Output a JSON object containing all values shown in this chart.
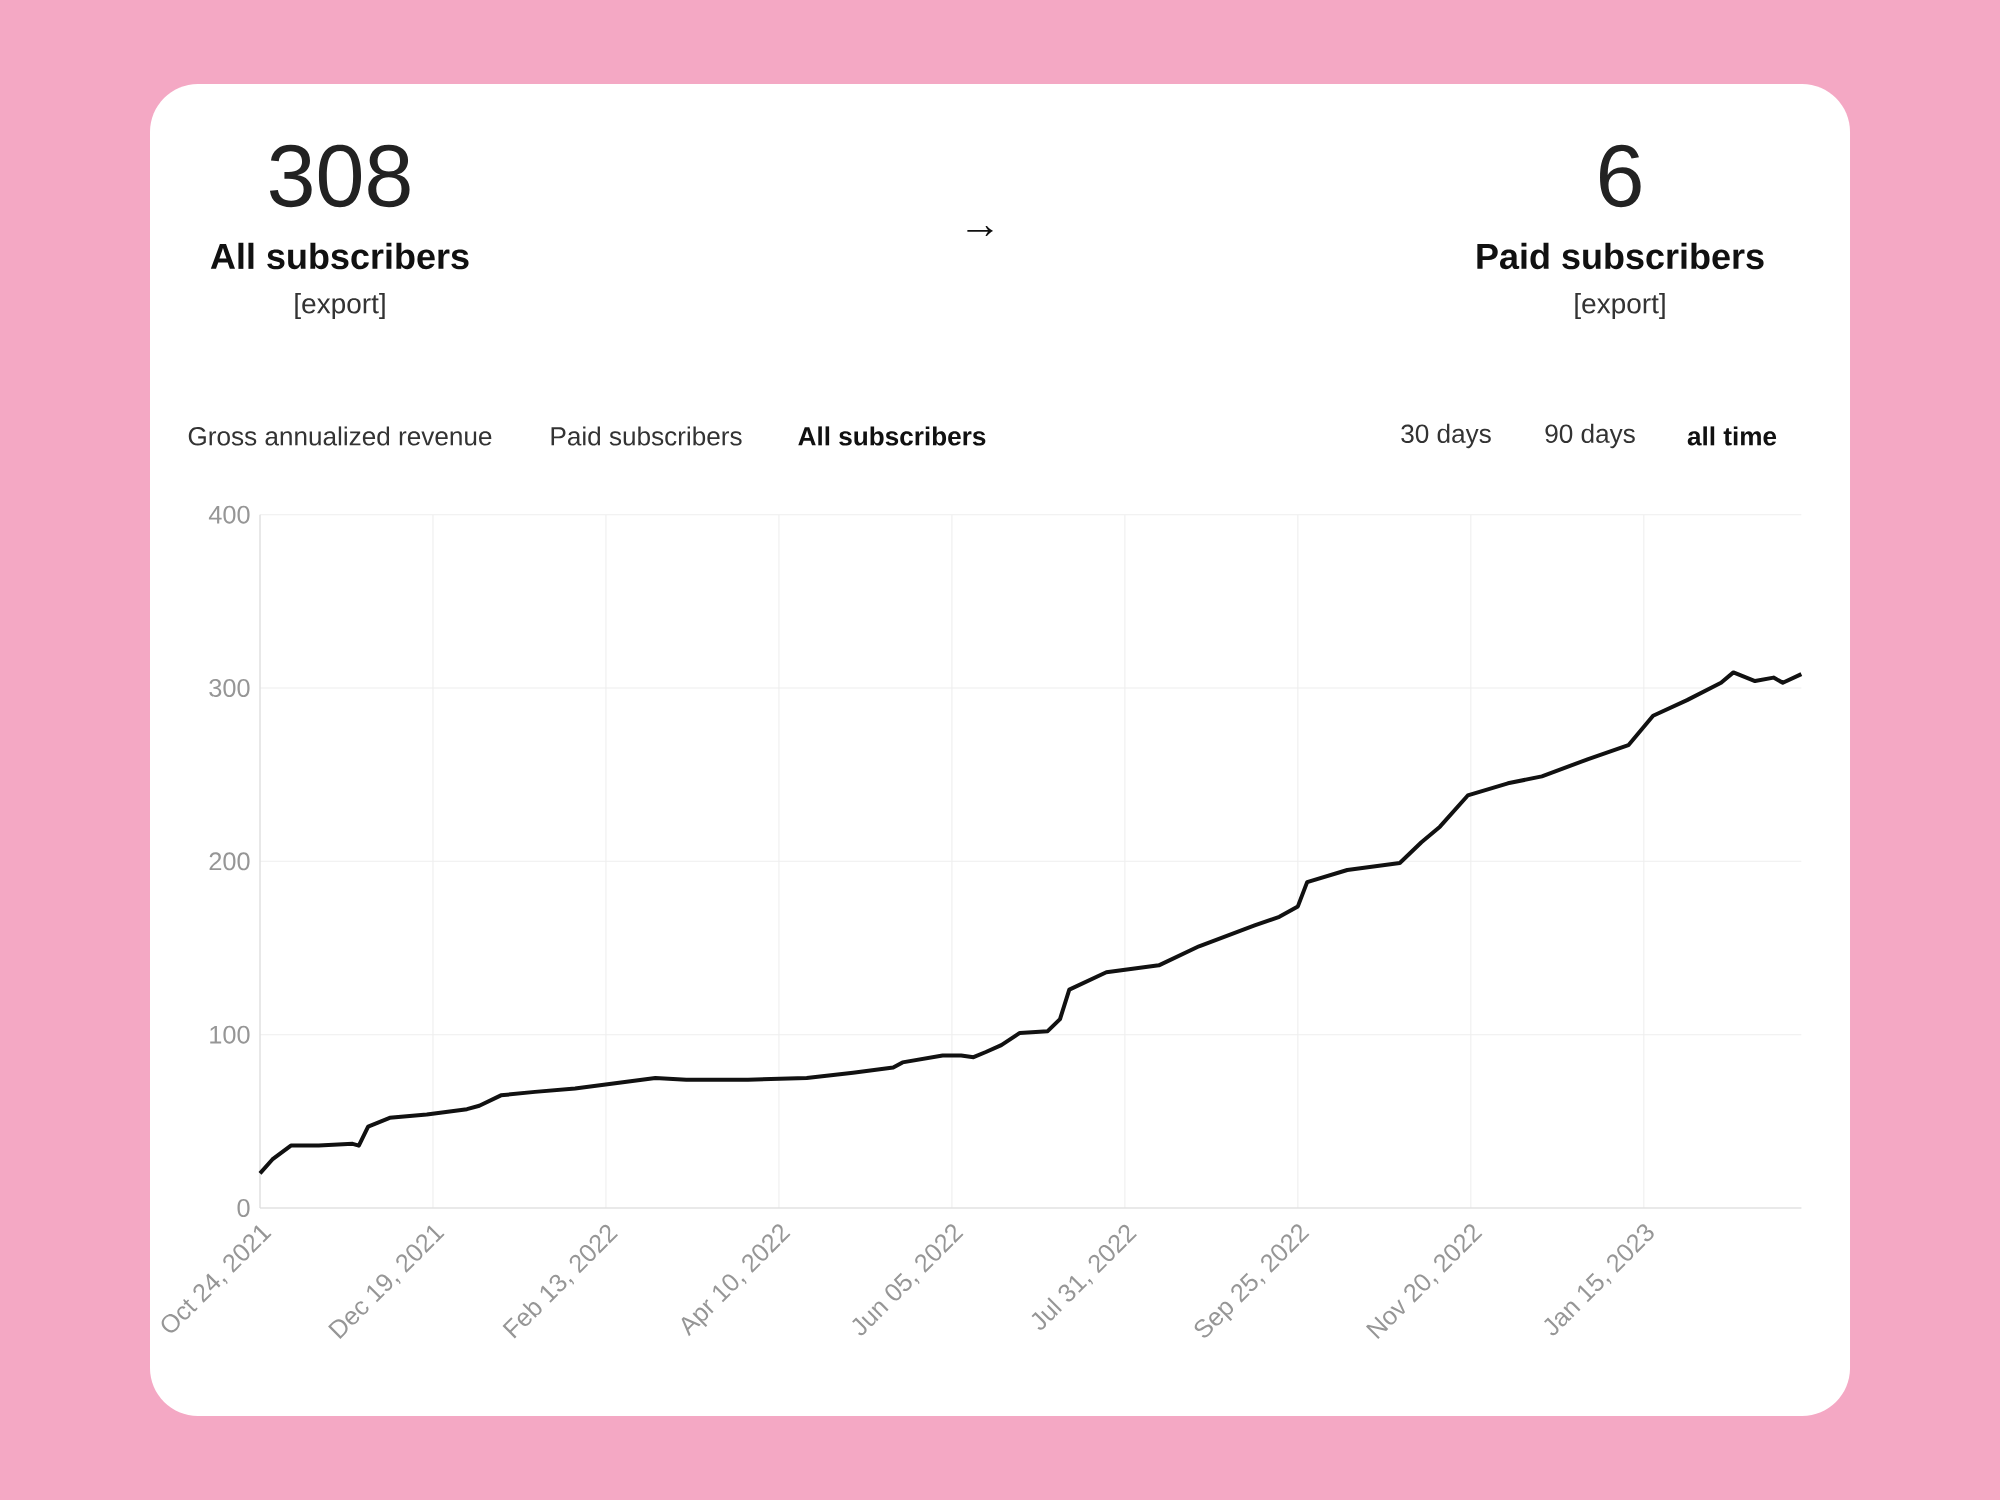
{
  "chart_data": {
    "type": "line",
    "color": "#111111",
    "grid": true,
    "annotations": [
      "308",
      "All subscribers",
      "[export]",
      "→",
      "6",
      "Paid subscribers",
      "[export]",
      "Gross annualized revenue",
      "Paid subscribers",
      "All subscribers",
      "30 days",
      "90 days",
      "all time"
    ],
    "xlim": [
      "2021-10-24",
      "2023-03-07"
    ],
    "xticks": [
      {
        "value": "2021-10-24",
        "label": "Oct 24, 2021"
      },
      {
        "value": "2021-12-19",
        "label": "Dec 19, 2021"
      },
      {
        "value": "2022-02-13",
        "label": "Feb 13, 2022"
      },
      {
        "value": "2022-04-10",
        "label": "Apr 10, 2022"
      },
      {
        "value": "2022-06-05",
        "label": "Jun 05, 2022"
      },
      {
        "value": "2022-07-31",
        "label": "Jul 31, 2022"
      },
      {
        "value": "2022-09-25",
        "label": "Sep 25, 2022"
      },
      {
        "value": "2022-11-20",
        "label": "Nov 20, 2022"
      },
      {
        "value": "2023-01-15",
        "label": "Jan 15, 2023"
      }
    ],
    "ylim": [
      0,
      400
    ],
    "yticks": [
      0,
      100,
      200,
      300,
      400
    ],
    "x": [
      "2021-10-24",
      "2021-10-28",
      "2021-11-03",
      "2021-11-12",
      "2021-11-23",
      "2021-11-25",
      "2021-11-28",
      "2021-12-05",
      "2021-12-17",
      "2021-12-30",
      "2022-01-03",
      "2022-01-10",
      "2022-01-21",
      "2022-02-03",
      "2022-02-16",
      "2022-03-01",
      "2022-03-11",
      "2022-03-31",
      "2022-04-19",
      "2022-05-04",
      "2022-05-17",
      "2022-05-20",
      "2022-06-02",
      "2022-06-08",
      "2022-06-12",
      "2022-06-16",
      "2022-06-21",
      "2022-06-27",
      "2022-07-06",
      "2022-07-10",
      "2022-07-13",
      "2022-07-25",
      "2022-08-11",
      "2022-08-24",
      "2022-09-11",
      "2022-09-19",
      "2022-09-25",
      "2022-09-28",
      "2022-10-11",
      "2022-10-28",
      "2022-11-04",
      "2022-11-10",
      "2022-11-19",
      "2022-12-02",
      "2022-12-13",
      "2022-12-28",
      "2023-01-10",
      "2023-01-18",
      "2023-01-29",
      "2023-02-09",
      "2023-02-13",
      "2023-02-20",
      "2023-02-26",
      "2023-03-01",
      "2023-03-07"
    ],
    "values": [
      20,
      28,
      36,
      36,
      37,
      36,
      47,
      52,
      54,
      57,
      59,
      65,
      67,
      69,
      72,
      75,
      74,
      74,
      75,
      78,
      81,
      84,
      88,
      88,
      87,
      90,
      94,
      101,
      102,
      109,
      126,
      136,
      140,
      151,
      163,
      168,
      174,
      188,
      195,
      199,
      211,
      220,
      238,
      245,
      249,
      259,
      267,
      284,
      293,
      303,
      309,
      304,
      306,
      303,
      308
    ]
  }
}
